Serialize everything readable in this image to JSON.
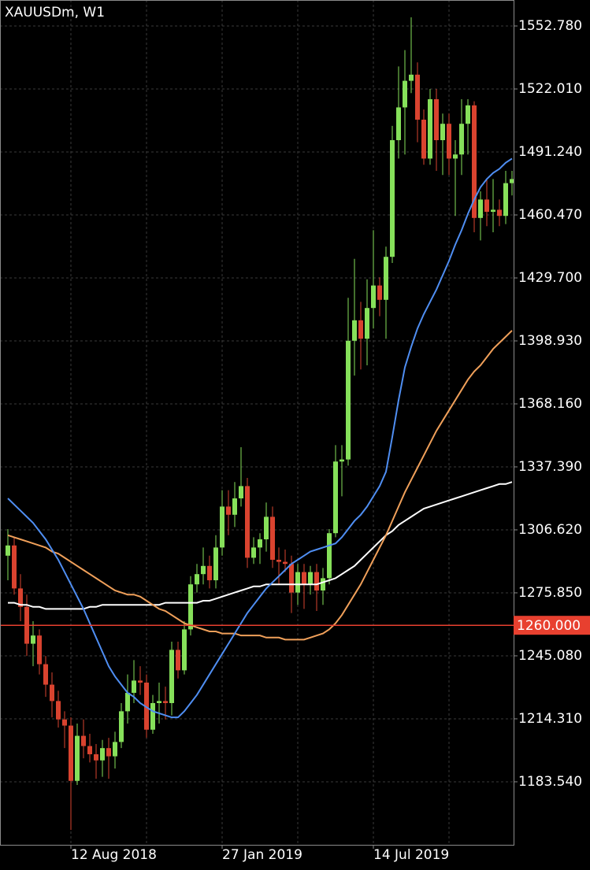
{
  "chart_data": {
    "type": "candlestick",
    "title": "XAUUSDm, W1",
    "categories": [
      null,
      null,
      null,
      null,
      null,
      null,
      null,
      null,
      null,
      null,
      "12 Aug 2018",
      null,
      null,
      null,
      null,
      null,
      null,
      null,
      null,
      null,
      null,
      null,
      null,
      null,
      null,
      null,
      null,
      null,
      null,
      null,
      null,
      null,
      null,
      null,
      "27 Jan 2019",
      null,
      null,
      null,
      null,
      null,
      null,
      null,
      null,
      null,
      null,
      null,
      null,
      null,
      null,
      null,
      null,
      null,
      null,
      null,
      null,
      null,
      null,
      null,
      "14 Jul 2019",
      null,
      null,
      null,
      null,
      null,
      null,
      null,
      null,
      null,
      null,
      null,
      null,
      null,
      null,
      null,
      null,
      null,
      null,
      null,
      null,
      null,
      null
    ],
    "open": [
      1294,
      1299,
      1278,
      1269,
      1251,
      1255,
      1241,
      1231,
      1223,
      1214,
      1211,
      1184,
      1206,
      1201,
      1197,
      1194,
      1200,
      1196,
      1203,
      1218,
      1227,
      1233,
      1232,
      1209,
      1222,
      1223,
      1222,
      1248,
      1238,
      1258,
      1280,
      1285,
      1289,
      1282,
      1298,
      1318,
      1314,
      1322,
      1328,
      1293,
      1298,
      1302,
      1313,
      1292,
      1291,
      1290,
      1276,
      1286,
      1280,
      1286,
      1277,
      1283,
      1305,
      1340,
      1341,
      1399,
      1409,
      1400,
      1415,
      1426,
      1419,
      1440,
      1497,
      1513,
      1526,
      1529,
      1507,
      1488,
      1517,
      1497,
      1505,
      1488,
      1490,
      1505,
      1514,
      1459,
      1468,
      1462,
      1463,
      1460,
      1476
    ],
    "high": [
      1307,
      1303,
      1285,
      1275,
      1262,
      1258,
      1245,
      1237,
      1228,
      1218,
      1215,
      1212,
      1214,
      1207,
      1202,
      1204,
      1205,
      1208,
      1222,
      1236,
      1243,
      1240,
      1236,
      1226,
      1232,
      1230,
      1252,
      1252,
      1262,
      1284,
      1290,
      1298,
      1294,
      1304,
      1326,
      1326,
      1330,
      1347,
      1332,
      1303,
      1305,
      1320,
      1318,
      1298,
      1297,
      1294,
      1290,
      1290,
      1289,
      1290,
      1288,
      1307,
      1348,
      1348,
      1420,
      1439,
      1418,
      1429,
      1453,
      1430,
      1445,
      1504,
      1533,
      1541,
      1557,
      1535,
      1512,
      1522,
      1522,
      1510,
      1510,
      1497,
      1517,
      1517,
      1516,
      1472,
      1478,
      1478,
      1468,
      1482,
      1482
    ],
    "low": [
      1282,
      1275,
      1262,
      1245,
      1240,
      1236,
      1225,
      1215,
      1210,
      1200,
      1160,
      1182,
      1195,
      1193,
      1185,
      1186,
      1185,
      1190,
      1200,
      1212,
      1222,
      1226,
      1205,
      1207,
      1212,
      1214,
      1216,
      1234,
      1236,
      1255,
      1276,
      1280,
      1278,
      1278,
      1294,
      1304,
      1308,
      1318,
      1288,
      1290,
      1290,
      1296,
      1288,
      1280,
      1286,
      1266,
      1270,
      1268,
      1275,
      1267,
      1270,
      1280,
      1303,
      1323,
      1338,
      1382,
      1385,
      1387,
      1405,
      1411,
      1400,
      1437,
      1488,
      1490,
      1520,
      1496,
      1485,
      1485,
      1482,
      1480,
      1480,
      1460,
      1480,
      1490,
      1452,
      1448,
      1455,
      1452,
      1455,
      1456,
      1470
    ],
    "close": [
      1299,
      1278,
      1269,
      1251,
      1255,
      1241,
      1231,
      1223,
      1214,
      1211,
      1184,
      1206,
      1201,
      1197,
      1194,
      1200,
      1196,
      1203,
      1218,
      1227,
      1233,
      1232,
      1209,
      1222,
      1223,
      1222,
      1248,
      1238,
      1258,
      1280,
      1285,
      1289,
      1282,
      1298,
      1318,
      1314,
      1322,
      1328,
      1293,
      1298,
      1302,
      1313,
      1292,
      1291,
      1290,
      1276,
      1286,
      1280,
      1286,
      1277,
      1283,
      1305,
      1340,
      1341,
      1399,
      1409,
      1400,
      1415,
      1426,
      1419,
      1440,
      1497,
      1513,
      1526,
      1529,
      1507,
      1488,
      1517,
      1497,
      1505,
      1488,
      1490,
      1505,
      1514,
      1459,
      1468,
      1462,
      1463,
      1460,
      1476,
      1478
    ],
    "up_color": "#86e05a",
    "down_color": "#d9432f",
    "series": [
      {
        "color": "#ffffff",
        "values": [
          1271,
          1271,
          1270,
          1270,
          1269,
          1269,
          1268,
          1268,
          1268,
          1268,
          1268,
          1268,
          1268,
          1269,
          1269,
          1270,
          1270,
          1270,
          1270,
          1270,
          1270,
          1270,
          1270,
          1270,
          1270,
          1271,
          1271,
          1271,
          1271,
          1271,
          1271,
          1272,
          1272,
          1273,
          1274,
          1275,
          1276,
          1277,
          1278,
          1279,
          1279,
          1280,
          1280,
          1280,
          1280,
          1280,
          1280,
          1280,
          1280,
          1280,
          1281,
          1282,
          1283,
          1285,
          1287,
          1289,
          1292,
          1295,
          1298,
          1301,
          1304,
          1306,
          1309,
          1311,
          1313,
          1315,
          1317,
          1318,
          1319,
          1320,
          1321,
          1322,
          1323,
          1324,
          1325,
          1326,
          1327,
          1328,
          1329,
          1329,
          1330
        ]
      },
      {
        "color": "#f0a05a",
        "values": [
          1304,
          1303,
          1302,
          1301,
          1300,
          1299,
          1298,
          1296,
          1295,
          1293,
          1291,
          1289,
          1287,
          1285,
          1283,
          1281,
          1279,
          1277,
          1276,
          1275,
          1275,
          1274,
          1272,
          1270,
          1268,
          1267,
          1265,
          1263,
          1261,
          1260,
          1259,
          1258,
          1257,
          1257,
          1256,
          1256,
          1256,
          1255,
          1255,
          1255,
          1255,
          1254,
          1254,
          1254,
          1253,
          1253,
          1253,
          1253,
          1254,
          1255,
          1256,
          1258,
          1261,
          1265,
          1270,
          1275,
          1280,
          1286,
          1292,
          1298,
          1304,
          1311,
          1318,
          1325,
          1331,
          1337,
          1343,
          1349,
          1355,
          1360,
          1365,
          1370,
          1375,
          1380,
          1384,
          1387,
          1391,
          1395,
          1398,
          1401,
          1404
        ]
      },
      {
        "color": "#4f8ef2",
        "values": [
          1322,
          1319,
          1316,
          1313,
          1310,
          1306,
          1302,
          1297,
          1292,
          1286,
          1280,
          1274,
          1268,
          1261,
          1254,
          1247,
          1240,
          1235,
          1231,
          1227,
          1225,
          1222,
          1220,
          1218,
          1217,
          1216,
          1215,
          1215,
          1218,
          1222,
          1226,
          1231,
          1236,
          1241,
          1246,
          1251,
          1256,
          1261,
          1266,
          1270,
          1274,
          1278,
          1281,
          1284,
          1287,
          1290,
          1292,
          1294,
          1296,
          1297,
          1298,
          1299,
          1300,
          1303,
          1307,
          1311,
          1314,
          1318,
          1323,
          1328,
          1335,
          1352,
          1370,
          1386,
          1396,
          1405,
          1412,
          1418,
          1424,
          1431,
          1438,
          1446,
          1453,
          1461,
          1468,
          1474,
          1478,
          1481,
          1483,
          1486,
          1488
        ]
      }
    ],
    "level": {
      "value": 1260,
      "label": "1260.000",
      "color": "#e8402f"
    },
    "ylim": [
      1152.76,
      1565.47
    ],
    "yticks": [
      {
        "value": 1552.78,
        "label": "1552.780"
      },
      {
        "value": 1522.01,
        "label": "1522.010"
      },
      {
        "value": 1491.24,
        "label": "1491.240"
      },
      {
        "value": 1460.47,
        "label": "1460.470"
      },
      {
        "value": 1429.7,
        "label": "1429.700"
      },
      {
        "value": 1398.93,
        "label": "1398.930"
      },
      {
        "value": 1368.16,
        "label": "1368.160"
      },
      {
        "value": 1337.39,
        "label": "1337.390"
      },
      {
        "value": 1306.62,
        "label": "1306.620"
      },
      {
        "value": 1275.85,
        "label": "1275.850"
      },
      {
        "value": 1245.08,
        "label": "1245.080"
      },
      {
        "value": 1214.31,
        "label": "1214.310"
      },
      {
        "value": 1183.54,
        "label": "1183.540"
      }
    ],
    "grid": true
  }
}
